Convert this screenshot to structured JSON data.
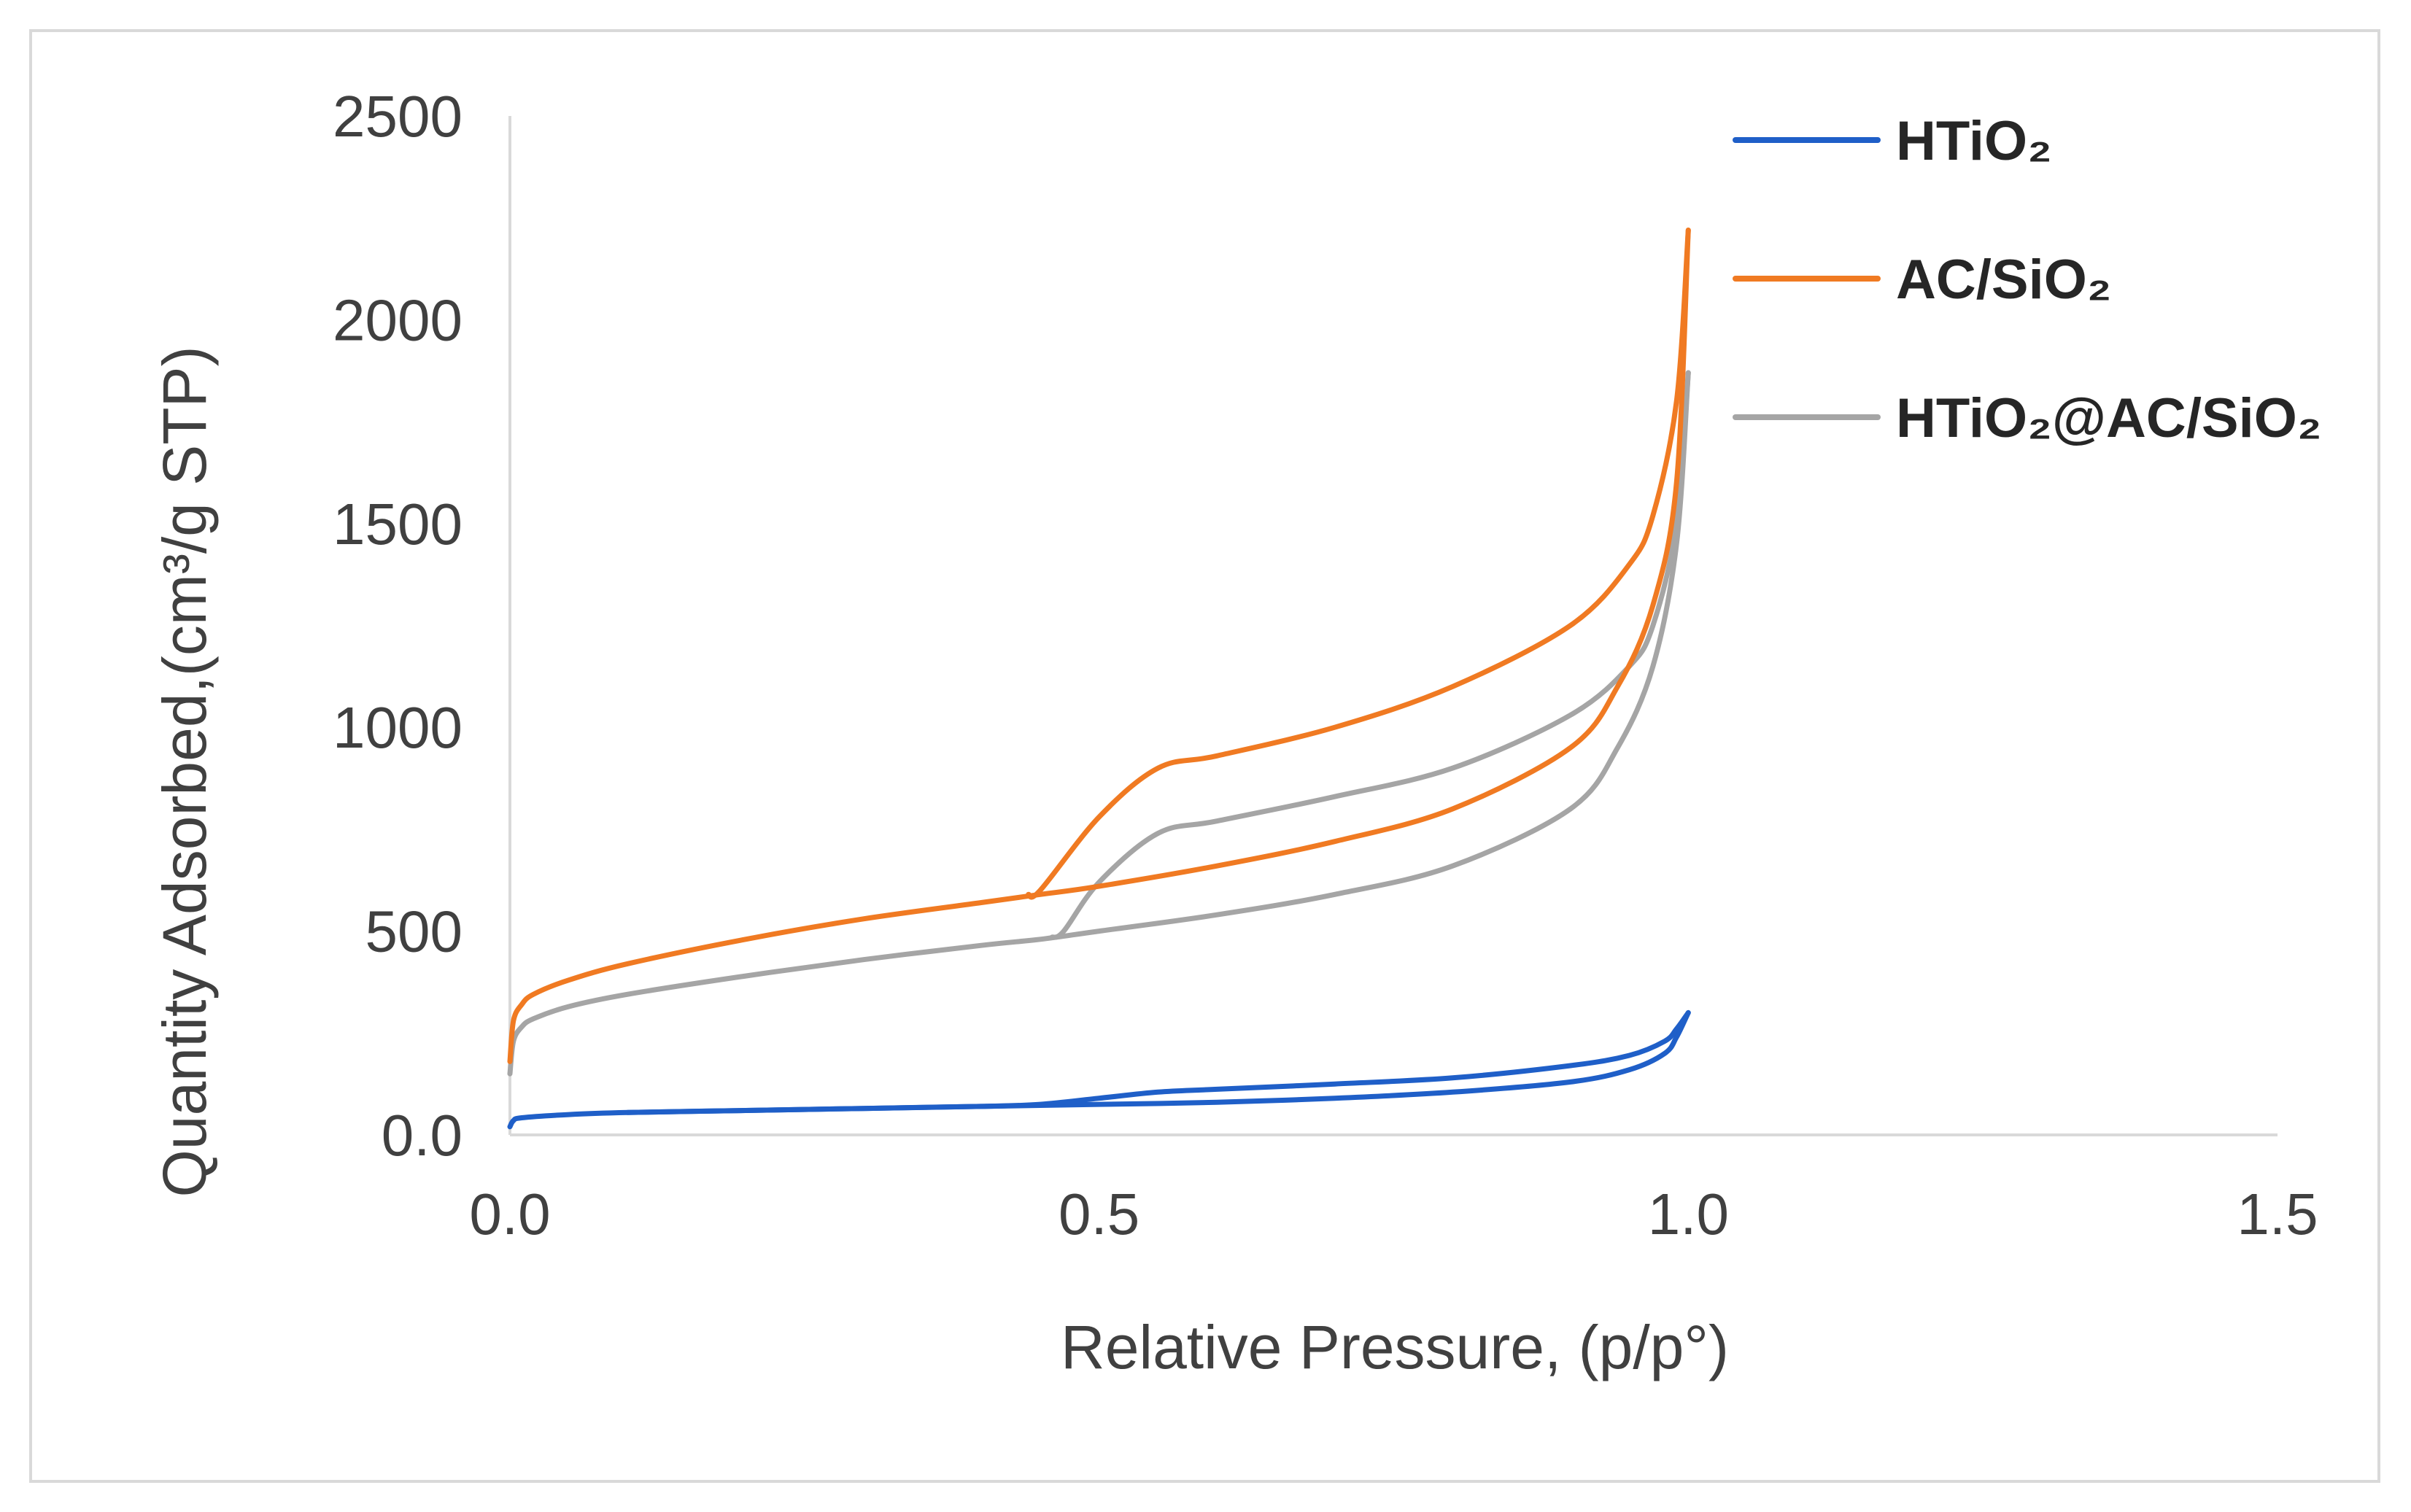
{
  "chart_data": {
    "type": "line",
    "title": "",
    "xlabel": "Relative Pressure, (p/p°)",
    "ylabel": "Quantity Adsorbed,(cm³/g STP)",
    "xlim": [
      0,
      1.5
    ],
    "ylim": [
      0,
      2500
    ],
    "x_ticks": [
      "0.0",
      "0.5",
      "1.0",
      "1.5"
    ],
    "y_ticks": [
      "0.0",
      "500",
      "1000",
      "1500",
      "2000",
      "2500"
    ],
    "x_tick_values": [
      0,
      0.5,
      1.0,
      1.5
    ],
    "y_tick_values": [
      0,
      500,
      1000,
      1500,
      2000,
      2500
    ],
    "legend_position": "top-right",
    "series": [
      {
        "name": "HTiO₂",
        "color": "#1f5fc8",
        "adsorption": {
          "x": [
            0,
            0.003,
            0.01,
            0.05,
            0.1,
            0.2,
            0.3,
            0.4,
            0.5,
            0.6,
            0.7,
            0.8,
            0.9,
            0.95,
            0.98,
            0.99,
            1.0
          ],
          "y": [
            20,
            35,
            42,
            50,
            55,
            60,
            65,
            70,
            75,
            80,
            90,
            105,
            130,
            160,
            200,
            240,
            300
          ]
        },
        "desorption": {
          "x": [
            1.0,
            0.99,
            0.98,
            0.95,
            0.9,
            0.8,
            0.7,
            0.6,
            0.55,
            0.5,
            0.45,
            0.4,
            0.3,
            0.2,
            0.1
          ],
          "y": [
            300,
            260,
            230,
            195,
            170,
            140,
            125,
            112,
            105,
            90,
            75,
            70,
            65,
            60,
            55
          ]
        }
      },
      {
        "name": "AC/SiO₂",
        "color": "#f07a22",
        "adsorption": {
          "x": [
            0,
            0.003,
            0.01,
            0.02,
            0.05,
            0.1,
            0.2,
            0.3,
            0.4,
            0.45,
            0.5,
            0.6,
            0.7,
            0.8,
            0.9,
            0.94,
            0.97,
            0.99,
            1.0
          ],
          "y": [
            180,
            280,
            320,
            345,
            380,
            420,
            480,
            530,
            570,
            590,
            610,
            660,
            720,
            800,
            950,
            1100,
            1300,
            1600,
            2220
          ]
        },
        "desorption": {
          "x": [
            1.0,
            0.99,
            0.97,
            0.95,
            0.9,
            0.8,
            0.7,
            0.6,
            0.55,
            0.5,
            0.45,
            0.44
          ],
          "y": [
            2220,
            1800,
            1520,
            1400,
            1250,
            1100,
            1000,
            930,
            900,
            780,
            600,
            590
          ]
        }
      },
      {
        "name": "HTiO₂@AC/SiO₂",
        "color": "#a5a5a5",
        "adsorption": {
          "x": [
            0,
            0.003,
            0.01,
            0.02,
            0.05,
            0.1,
            0.2,
            0.3,
            0.4,
            0.45,
            0.5,
            0.6,
            0.7,
            0.8,
            0.9,
            0.94,
            0.97,
            0.99,
            1.0
          ],
          "y": [
            150,
            230,
            265,
            285,
            315,
            345,
            390,
            430,
            465,
            480,
            500,
            540,
            590,
            660,
            800,
            950,
            1150,
            1450,
            1870
          ]
        },
        "desorption": {
          "x": [
            1.0,
            0.99,
            0.97,
            0.95,
            0.9,
            0.8,
            0.7,
            0.6,
            0.55,
            0.5,
            0.47,
            0.46
          ],
          "y": [
            1870,
            1500,
            1250,
            1150,
            1030,
            900,
            830,
            770,
            740,
            620,
            500,
            485
          ]
        }
      }
    ]
  }
}
